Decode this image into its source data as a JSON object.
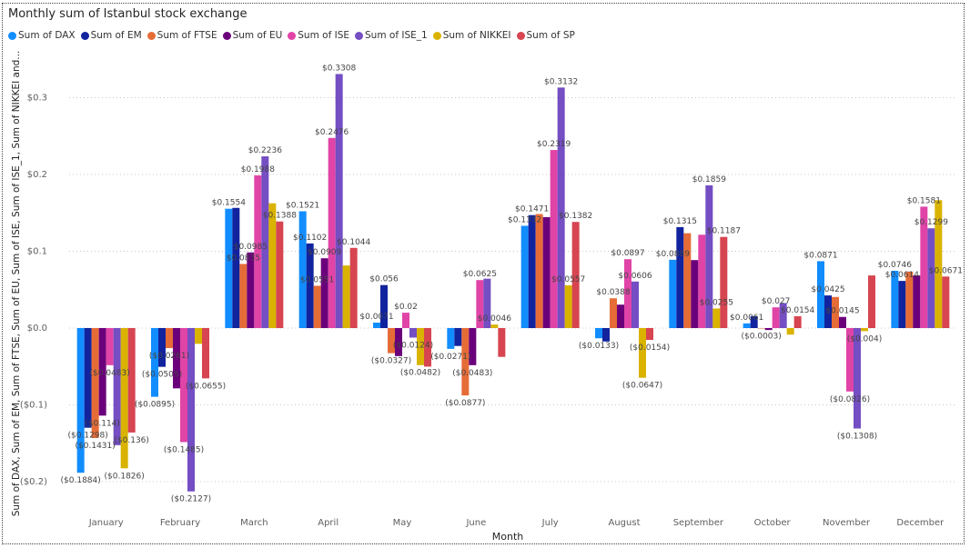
{
  "chart_data": {
    "type": "bar",
    "title": "Monthly sum of Istanbul stock exchange",
    "xlabel": "Month",
    "ylabel": "Sum of DAX, Sum of EM, Sum of FTSE, Sum of EU, Sum of ISE, Sum of ISE_1, Sum of NIKKEI and...",
    "ylim": [
      -0.22,
      0.35
    ],
    "yticks": [
      0.3,
      0.2,
      0.1,
      0.0,
      -0.1,
      -0.2
    ],
    "ytick_labels": [
      "$0.3",
      "$0.2",
      "$0.1",
      "$0.0",
      "($0.1)",
      "($0.2)"
    ],
    "grid": true,
    "legend_position": "top-left",
    "categories": [
      "January",
      "February",
      "March",
      "April",
      "May",
      "June",
      "July",
      "August",
      "September",
      "October",
      "November",
      "December"
    ],
    "series": [
      {
        "name": "Sum of DAX",
        "color": "#118DFF",
        "values": [
          -0.1884,
          -0.0895,
          0.1554,
          0.1521,
          0.0071,
          -0.0271,
          0.1332,
          -0.0133,
          0.0889,
          0.0061,
          0.0871,
          0.0746
        ]
      },
      {
        "name": "Sum of EM",
        "color": "#12239E",
        "values": [
          -0.1298,
          -0.0505,
          0.1565,
          0.1102,
          0.056,
          -0.0233,
          0.1471,
          -0.0175,
          0.1315,
          0.0155,
          0.0425,
          0.0614
        ]
      },
      {
        "name": "Sum of FTSE",
        "color": "#E66C37",
        "values": [
          -0.1431,
          -0.0261,
          0.0835,
          0.0551,
          -0.0327,
          -0.0877,
          0.1485,
          0.0388,
          0.1235,
          -0.0003,
          0.0405,
          0.0735
        ]
      },
      {
        "name": "Sum of EU",
        "color": "#6B007B",
        "values": [
          -0.114,
          -0.0785,
          0.0985,
          0.0909,
          -0.0365,
          -0.0483,
          0.1445,
          0.0305,
          0.0885,
          -0.0025,
          0.0145,
          0.0685
        ]
      },
      {
        "name": "Sum of ISE",
        "color": "#E044A7",
        "values": [
          -0.0483,
          -0.1485,
          0.1988,
          0.2476,
          0.02,
          0.0625,
          0.2319,
          0.0897,
          0.1215,
          0.027,
          -0.0826,
          0.1581
        ]
      },
      {
        "name": "Sum of ISE_1",
        "color": "#744EC2",
        "values": [
          -0.1525,
          -0.2127,
          0.2236,
          0.3308,
          -0.0124,
          0.0643,
          0.3132,
          0.0606,
          0.1859,
          0.0325,
          -0.1308,
          0.1299
        ]
      },
      {
        "name": "Sum of NIKKEI",
        "color": "#D9B300",
        "values": [
          -0.1826,
          -0.0205,
          0.1625,
          0.0815,
          -0.0482,
          0.0046,
          0.0557,
          -0.0647,
          0.0255,
          -0.0085,
          -0.004,
          0.1665
        ]
      },
      {
        "name": "Sum of SP",
        "color": "#D64550",
        "values": [
          -0.136,
          -0.0655,
          0.1388,
          0.1044,
          -0.0502,
          -0.0375,
          0.1382,
          -0.0154,
          0.1187,
          0.0154,
          0.0685,
          0.0671
        ]
      }
    ],
    "data_labels": [
      {
        "month": "January",
        "series": 0,
        "text": "($0.1884)"
      },
      {
        "month": "January",
        "series": 1,
        "text": "($0.1298)"
      },
      {
        "month": "January",
        "series": 2,
        "text": "($0.1431)"
      },
      {
        "month": "January",
        "series": 3,
        "text": "($0.114)"
      },
      {
        "month": "January",
        "series": 4,
        "text": "($0.0483)"
      },
      {
        "month": "January",
        "series": 6,
        "text": "($0.1826)"
      },
      {
        "month": "January",
        "series": 7,
        "text": "($0.136)"
      },
      {
        "month": "February",
        "series": 0,
        "text": "($0.0895)"
      },
      {
        "month": "February",
        "series": 1,
        "text": "($0.0505)"
      },
      {
        "month": "February",
        "series": 2,
        "text": "($0.0261)"
      },
      {
        "month": "February",
        "series": 4,
        "text": "($0.1485)"
      },
      {
        "month": "February",
        "series": 5,
        "text": "($0.2127)"
      },
      {
        "month": "February",
        "series": 7,
        "text": "($0.0655)"
      },
      {
        "month": "March",
        "series": 0,
        "text": "$0.1554"
      },
      {
        "month": "March",
        "series": 2,
        "text": "$0.0835"
      },
      {
        "month": "March",
        "series": 3,
        "text": "$0.0985"
      },
      {
        "month": "March",
        "series": 4,
        "text": "$0.1988"
      },
      {
        "month": "March",
        "series": 5,
        "text": "$0.2236"
      },
      {
        "month": "March",
        "series": 7,
        "text": "$0.1388"
      },
      {
        "month": "April",
        "series": 0,
        "text": "$0.1521"
      },
      {
        "month": "April",
        "series": 1,
        "text": "$0.1102"
      },
      {
        "month": "April",
        "series": 2,
        "text": "$0.0551"
      },
      {
        "month": "April",
        "series": 3,
        "text": "$0.0909"
      },
      {
        "month": "April",
        "series": 4,
        "text": "$0.2476"
      },
      {
        "month": "April",
        "series": 5,
        "text": "$0.3308"
      },
      {
        "month": "April",
        "series": 7,
        "text": "$0.1044"
      },
      {
        "month": "May",
        "series": 0,
        "text": "$0.0071"
      },
      {
        "month": "May",
        "series": 1,
        "text": "$0.056"
      },
      {
        "month": "May",
        "series": 2,
        "text": "($0.0327)"
      },
      {
        "month": "May",
        "series": 4,
        "text": "$0.02"
      },
      {
        "month": "May",
        "series": 5,
        "text": "($0.0124)"
      },
      {
        "month": "May",
        "series": 6,
        "text": "($0.0482)"
      },
      {
        "month": "June",
        "series": 0,
        "text": "($0.0271)"
      },
      {
        "month": "June",
        "series": 2,
        "text": "($0.0877)"
      },
      {
        "month": "June",
        "series": 3,
        "text": "($0.0483)"
      },
      {
        "month": "June",
        "series": 4,
        "text": "$0.0625"
      },
      {
        "month": "June",
        "series": 6,
        "text": "$0.0046"
      },
      {
        "month": "July",
        "series": 0,
        "text": "$0.1332"
      },
      {
        "month": "July",
        "series": 1,
        "text": "$0.1471"
      },
      {
        "month": "July",
        "series": 4,
        "text": "$0.2319"
      },
      {
        "month": "July",
        "series": 5,
        "text": "$0.3132"
      },
      {
        "month": "July",
        "series": 6,
        "text": "$0.0557"
      },
      {
        "month": "July",
        "series": 7,
        "text": "$0.1382"
      },
      {
        "month": "August",
        "series": 0,
        "text": "($0.0133)"
      },
      {
        "month": "August",
        "series": 2,
        "text": "$0.0388"
      },
      {
        "month": "August",
        "series": 4,
        "text": "$0.0897"
      },
      {
        "month": "August",
        "series": 5,
        "text": "$0.0606"
      },
      {
        "month": "August",
        "series": 6,
        "text": "($0.0647)"
      },
      {
        "month": "August",
        "series": 7,
        "text": "($0.0154)"
      },
      {
        "month": "September",
        "series": 0,
        "text": "$0.0889"
      },
      {
        "month": "September",
        "series": 1,
        "text": "$0.1315"
      },
      {
        "month": "September",
        "series": 5,
        "text": "$0.1859"
      },
      {
        "month": "September",
        "series": 6,
        "text": "$0.0255"
      },
      {
        "month": "September",
        "series": 7,
        "text": "$0.1187"
      },
      {
        "month": "October",
        "series": 0,
        "text": "$0.0061"
      },
      {
        "month": "October",
        "series": 2,
        "text": "($0.0003)"
      },
      {
        "month": "October",
        "series": 4,
        "text": "$0.027"
      },
      {
        "month": "October",
        "series": 7,
        "text": "$0.0154"
      },
      {
        "month": "November",
        "series": 0,
        "text": "$0.0871"
      },
      {
        "month": "November",
        "series": 1,
        "text": "$0.0425"
      },
      {
        "month": "November",
        "series": 3,
        "text": "$0.0145"
      },
      {
        "month": "November",
        "series": 4,
        "text": "($0.0826)"
      },
      {
        "month": "November",
        "series": 5,
        "text": "($0.1308)"
      },
      {
        "month": "November",
        "series": 6,
        "text": "($0.004)"
      },
      {
        "month": "December",
        "series": 0,
        "text": "$0.0746"
      },
      {
        "month": "December",
        "series": 1,
        "text": "$0.0614"
      },
      {
        "month": "December",
        "series": 4,
        "text": "$0.1581"
      },
      {
        "month": "December",
        "series": 5,
        "text": "$0.1299"
      },
      {
        "month": "December",
        "series": 7,
        "text": "$0.0671"
      }
    ]
  }
}
